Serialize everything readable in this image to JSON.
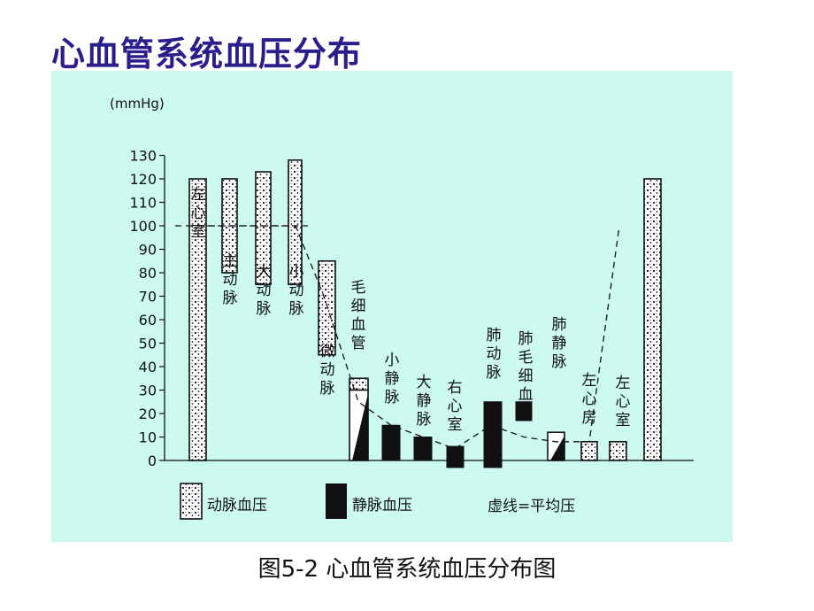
{
  "title": "心血管系统血压分布",
  "caption": "图5-2 心血管系统血压分布图",
  "chart_data": {
    "type": "bar",
    "ylabel": "(mmHg)",
    "ylim": [
      0,
      130
    ],
    "yticks": [
      0,
      10,
      20,
      30,
      40,
      50,
      60,
      70,
      80,
      90,
      100,
      110,
      120,
      130
    ],
    "mean_line_style": "dashed",
    "grid": false,
    "categories": [
      "左心室",
      "主动脉",
      "大动脉",
      "小动脉",
      "微动脉",
      "毛细血管",
      "小静脉",
      "大静脉",
      "右心室",
      "肺动脉",
      "肺毛细血管",
      "肺静脉",
      "左心房",
      "左心室"
    ],
    "series": [
      {
        "name": "动脉血压",
        "values": [
          {
            "category": "左心室",
            "low": 0,
            "high": 120
          },
          {
            "category": "主动脉",
            "low": 80,
            "high": 120
          },
          {
            "category": "大动脉",
            "low": 75,
            "high": 123
          },
          {
            "category": "小动脉",
            "low": 75,
            "high": 128
          },
          {
            "category": "微动脉",
            "low": 45,
            "high": 85
          },
          {
            "category": "毛细血管",
            "low": 30,
            "high": 35
          },
          {
            "category": "肺静脉",
            "low": 0,
            "high": 8
          },
          {
            "category": "左心房",
            "low": 0,
            "high": 8
          },
          {
            "category": "左心室",
            "low": 0,
            "high": 120
          }
        ]
      },
      {
        "name": "静脉血压",
        "values": [
          {
            "category": "毛细血管",
            "low": 0,
            "high": 30
          },
          {
            "category": "小静脉",
            "low": 0,
            "high": 15
          },
          {
            "category": "大静脉",
            "low": 0,
            "high": 10
          },
          {
            "category": "右心室",
            "low": -3,
            "high": 6
          },
          {
            "category": "右心室",
            "low": -3,
            "high": 25
          },
          {
            "category": "肺动脉",
            "low": 17,
            "high": 25
          },
          {
            "category": "肺毛细血管",
            "low": 0,
            "high": 12
          }
        ]
      },
      {
        "name": "虚线=平均压",
        "values": [
          100,
          100,
          100,
          100,
          70,
          25,
          15,
          10,
          5,
          15,
          10,
          8,
          8,
          100
        ]
      }
    ],
    "legend": [
      {
        "label": "动脉血压",
        "pattern": "dotted"
      },
      {
        "label": "静脉血压",
        "pattern": "solid"
      },
      {
        "label": "虚线=平均压",
        "pattern": "none"
      }
    ],
    "legend_position": "bottom"
  }
}
